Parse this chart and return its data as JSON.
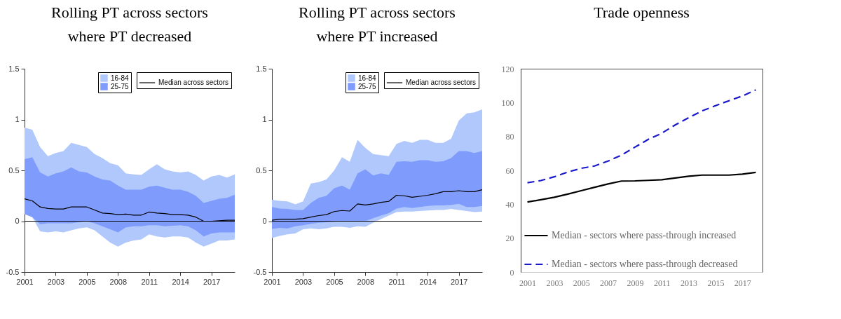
{
  "chart_data": [
    {
      "type": "line",
      "title": "Rolling PT across sectors where PT decreased",
      "categories": [
        "2001",
        null,
        null,
        null,
        "2003",
        null,
        null,
        null,
        "2005",
        null,
        null,
        null,
        "2008",
        null,
        null,
        null,
        "2011",
        null,
        null,
        null,
        "2014",
        null,
        null,
        null,
        "2017",
        null,
        null,
        null
      ],
      "ylim": [
        -0.5,
        1.5
      ],
      "yticks": [
        -0.5,
        0,
        0.5,
        1,
        1.5
      ],
      "legend": "top right",
      "series": [
        {
          "name": "16-84",
          "color": "#b0c8fc",
          "values": [
            null,
            null,
            null,
            null,
            null,
            null,
            null,
            null,
            null,
            null,
            null,
            null,
            null,
            null,
            null,
            null,
            null,
            null,
            null,
            null,
            null,
            null,
            null,
            null,
            null,
            null,
            null,
            null
          ],
          "lower": [
            0.07,
            0.04,
            -0.1,
            -0.11,
            -0.1,
            -0.11,
            -0.09,
            -0.07,
            -0.06,
            -0.09,
            -0.15,
            -0.21,
            -0.25,
            -0.21,
            -0.19,
            -0.18,
            -0.13,
            -0.15,
            -0.16,
            -0.15,
            -0.15,
            -0.16,
            -0.21,
            -0.25,
            -0.22,
            -0.19,
            -0.19,
            -0.18
          ],
          "upper": [
            0.92,
            0.9,
            0.73,
            0.64,
            0.67,
            0.69,
            0.77,
            0.75,
            0.73,
            0.66,
            0.62,
            0.57,
            0.55,
            0.47,
            0.46,
            0.455,
            0.51,
            0.56,
            0.51,
            0.49,
            0.48,
            0.49,
            0.455,
            0.4,
            0.44,
            0.455,
            0.43,
            0.46
          ]
        },
        {
          "name": "25-75",
          "color": "#7f9bfc",
          "values": [
            null,
            null,
            null,
            null,
            null,
            null,
            null,
            null,
            null,
            null,
            null,
            null,
            null,
            null,
            null,
            null,
            null,
            null,
            null,
            null,
            null,
            null,
            null,
            null,
            null,
            null,
            null,
            null
          ],
          "lower": [
            0.07,
            0.04,
            -0.03,
            -0.02,
            -0.02,
            -0.02,
            -0.02,
            -0.01,
            0,
            -0.02,
            -0.05,
            -0.08,
            -0.11,
            -0.06,
            -0.05,
            -0.05,
            -0.04,
            -0.04,
            -0.05,
            -0.045,
            -0.04,
            -0.05,
            -0.09,
            -0.15,
            -0.12,
            -0.11,
            -0.11,
            -0.11
          ],
          "upper": [
            0.61,
            0.63,
            0.48,
            0.44,
            0.47,
            0.49,
            0.53,
            0.49,
            0.48,
            0.44,
            0.41,
            0.4,
            0.35,
            0.31,
            0.31,
            0.31,
            0.34,
            0.35,
            0.33,
            0.31,
            0.31,
            0.29,
            0.25,
            0.18,
            0.2,
            0.22,
            0.23,
            0.26
          ]
        },
        {
          "name": "Median across sectors",
          "color": "#000000",
          "values": [
            0.22,
            0.2,
            0.14,
            0.125,
            0.12,
            0.12,
            0.14,
            0.14,
            0.14,
            0.11,
            0.08,
            0.075,
            0.065,
            0.07,
            0.06,
            0.06,
            0.09,
            0.08,
            0.075,
            0.065,
            0.065,
            0.06,
            0.04,
            0,
            0,
            0.005,
            0.01,
            0.01
          ]
        }
      ],
      "ref_lines": [
        {
          "axis": "y",
          "value": 0,
          "color": "#000000"
        }
      ]
    },
    {
      "type": "line",
      "title": "Rolling PT across sectors where PT increased",
      "categories": [
        "2001",
        null,
        null,
        null,
        "2003",
        null,
        null,
        null,
        "2005",
        null,
        null,
        null,
        "2008",
        null,
        null,
        null,
        "2011",
        null,
        null,
        null,
        "2014",
        null,
        null,
        null,
        "2017",
        null,
        null,
        null
      ],
      "ylim": [
        -0.5,
        1.5
      ],
      "yticks": [
        -0.5,
        0,
        0.5,
        1,
        1.5
      ],
      "legend": "top right",
      "series": [
        {
          "name": "16-84",
          "color": "#b0c8fc",
          "values": [
            null,
            null,
            null,
            null,
            null,
            null,
            null,
            null,
            null,
            null,
            null,
            null,
            null,
            null,
            null,
            null,
            null,
            null,
            null,
            null,
            null,
            null,
            null,
            null,
            null,
            null,
            null,
            null
          ],
          "lower": [
            -0.165,
            -0.145,
            -0.13,
            -0.12,
            -0.08,
            -0.07,
            -0.08,
            -0.07,
            -0.055,
            -0.055,
            -0.065,
            -0.05,
            -0.055,
            -0.015,
            0.02,
            0.055,
            0.09,
            0.095,
            0.095,
            0.1,
            0.105,
            0.11,
            0.11,
            0.12,
            0.11,
            0.1,
            0.09,
            0.095
          ],
          "upper": [
            0.21,
            0.2,
            0.195,
            0.165,
            0.195,
            0.37,
            0.385,
            0.41,
            0.5,
            0.63,
            0.585,
            0.8,
            0.72,
            0.66,
            0.65,
            0.64,
            0.76,
            0.79,
            0.77,
            0.8,
            0.8,
            0.77,
            0.77,
            0.81,
            0.99,
            1.06,
            1.07,
            1.1
          ]
        },
        {
          "name": "25-75",
          "color": "#7f9bfc",
          "values": [
            null,
            null,
            null,
            null,
            null,
            null,
            null,
            null,
            null,
            null,
            null,
            null,
            null,
            null,
            null,
            null,
            null,
            null,
            null,
            null,
            null,
            null,
            null,
            null,
            null,
            null,
            null,
            null
          ],
          "lower": [
            -0.075,
            -0.065,
            -0.07,
            -0.05,
            -0.04,
            -0.025,
            -0.015,
            -0.01,
            -0.005,
            0,
            0,
            0,
            0,
            0.03,
            0.055,
            0.08,
            0.125,
            0.14,
            0.13,
            0.14,
            0.15,
            0.155,
            0.155,
            0.16,
            0.17,
            0.14,
            0.14,
            0.15
          ],
          "upper": [
            0.14,
            0.125,
            0.12,
            0.11,
            0.11,
            0.18,
            0.23,
            0.25,
            0.325,
            0.35,
            0.31,
            0.47,
            0.51,
            0.45,
            0.47,
            0.455,
            0.585,
            0.59,
            0.585,
            0.6,
            0.6,
            0.585,
            0.59,
            0.62,
            0.69,
            0.69,
            0.67,
            0.69
          ]
        },
        {
          "name": "Median across sectors",
          "color": "#000000",
          "values": [
            0.01,
            0.02,
            0.02,
            0.02,
            0.025,
            0.04,
            0.055,
            0.065,
            0.095,
            0.105,
            0.1,
            0.17,
            0.16,
            0.17,
            0.185,
            0.195,
            0.255,
            0.25,
            0.235,
            0.245,
            0.255,
            0.27,
            0.29,
            0.29,
            0.3,
            0.29,
            0.29,
            0.31
          ]
        }
      ],
      "ref_lines": [
        {
          "axis": "y",
          "value": 0,
          "color": "#000000"
        }
      ]
    },
    {
      "type": "line",
      "title": "Trade openness",
      "x": [
        2001,
        2002,
        2003,
        2004,
        2005,
        2006,
        2007,
        2008,
        2009,
        2010,
        2011,
        2012,
        2013,
        2014,
        2015,
        2016,
        2017,
        2018
      ],
      "xlim": [
        2000.5,
        2018.5
      ],
      "xticks": [
        2001,
        2003,
        2005,
        2007,
        2009,
        2011,
        2013,
        2015,
        2017
      ],
      "ylim": [
        0,
        120
      ],
      "yticks": [
        0,
        20,
        40,
        60,
        80,
        100,
        120
      ],
      "legend": "bottom left",
      "series": [
        {
          "name": "Median - sectors where pass-through increased",
          "color": "#000000",
          "line_style": "solid",
          "values": [
            41.3,
            42.7,
            44.1,
            46,
            48,
            50,
            52,
            53.7,
            53.8,
            54.1,
            54.5,
            55.5,
            56.5,
            57.2,
            57.2,
            57.2,
            57.8,
            58.8
          ]
        },
        {
          "name": "Median - sectors where pass-through decreased",
          "color": "#1a1acc",
          "line_style": "dashed",
          "values": [
            52.7,
            54,
            56.2,
            59,
            61.2,
            62.6,
            65.5,
            69,
            73.7,
            78.3,
            81.9,
            86.8,
            91.1,
            95.1,
            98.2,
            101.1,
            103.9,
            107.5
          ]
        }
      ]
    }
  ]
}
